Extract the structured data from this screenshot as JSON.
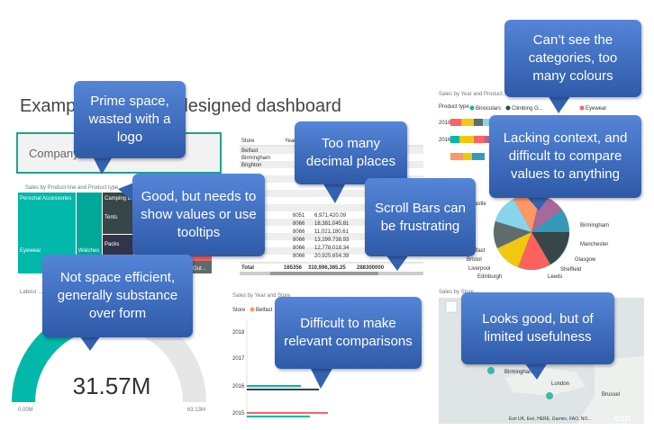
{
  "title": "Example of a badly designed dashboard",
  "callouts": [
    "Prime space, wasted with a logo",
    "Can’t see the categories, too many colours",
    "Too many decimal places",
    "Lacking context, and difficult to compare values to anything",
    "Good, but needs to show values or use tooltips",
    "Scroll Bars can be frustrating",
    "Not space efficient, generally substance over form",
    "Difficult to make relevant comparisons",
    "Looks good, but of limited usefulness"
  ],
  "logo_tile": {
    "text": "Company L"
  },
  "treemap": {
    "title": "Sales by Product line and Product type",
    "labels": [
      "Personal Accessories",
      "Camping E...",
      "Tents",
      "Eyewear",
      "Watches",
      "Packs",
      "Out..."
    ]
  },
  "table": {
    "headers": [
      "Store",
      "Year"
    ],
    "rows": [
      [
        "Belfast"
      ],
      [
        "Birmingham"
      ],
      [
        "Brighton"
      ],
      [
        "6051",
        "6,971,420.09"
      ],
      [
        "8066",
        "18,381,045.81"
      ],
      [
        "8066",
        "11,021,180.61"
      ],
      [
        "8066",
        "13,299,738.93"
      ],
      [
        "8066",
        "12,778,018.34"
      ],
      [
        "8066",
        "20,925,654.39"
      ]
    ],
    "total": [
      "Total",
      "165356",
      "310,996,365.25",
      "288300000"
    ]
  },
  "stacked_bar": {
    "title": "Sales by Year and Product...",
    "legend_title": "Product type",
    "legend": [
      "Binoculars",
      "Climbing G...",
      "Eyewear"
    ],
    "categories": [
      "2018",
      "2016"
    ]
  },
  "pie": {
    "labels": [
      "Newcastle",
      "Belfast",
      "Bristol",
      "Liverpool",
      "Edinburgh",
      "Leeds",
      "Sheffield",
      "Glasgow",
      "Manchester",
      "Birmingham"
    ]
  },
  "gauge": {
    "title": "Labour ...",
    "value": "31.57M",
    "min": "0.00M",
    "max": "63.13M"
  },
  "bar_chart": {
    "title": "Sales by Year and Store",
    "legend_title": "Store",
    "legend": [
      "Belfast"
    ],
    "categories": [
      "2018",
      "2017",
      "2016",
      "2015"
    ]
  },
  "map": {
    "title": "Sales by Store",
    "labels": [
      "Birmingham",
      "London",
      "Brussel"
    ],
    "attribution": "Esri UK, Esri, HERE, Garmin, FAO, NO...",
    "logo": "esri"
  }
}
